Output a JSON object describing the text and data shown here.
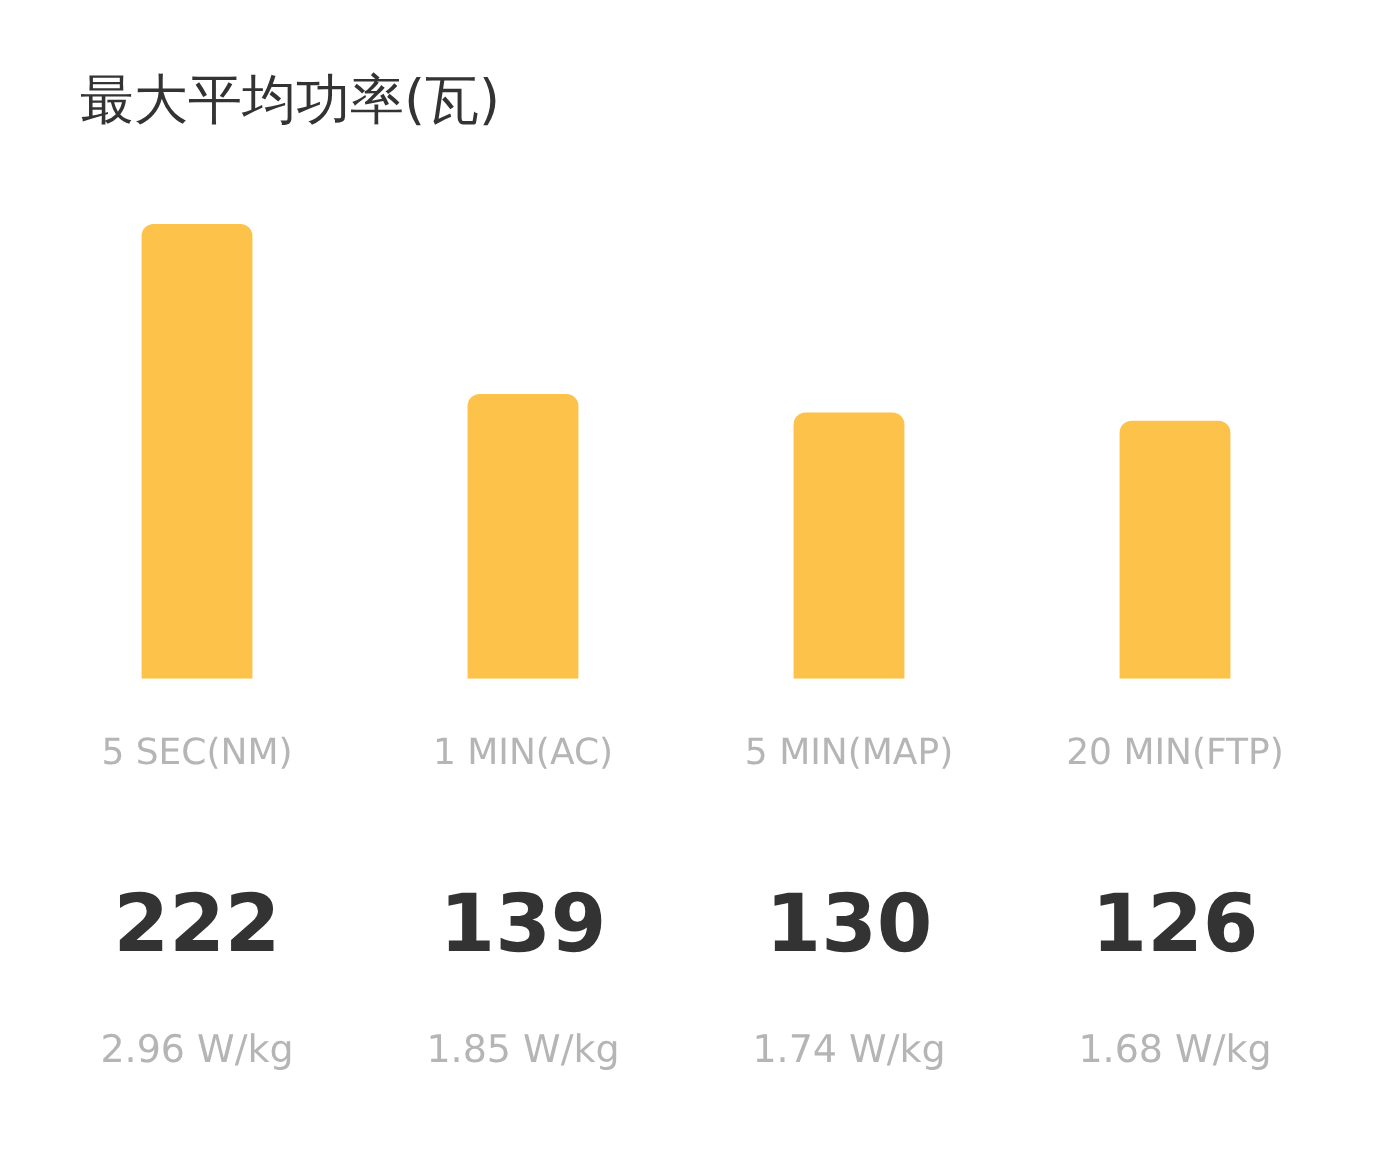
{
  "chart_data": {
    "type": "bar",
    "title": "最大平均功率(瓦)",
    "categories": [
      "5 SEC(NM)",
      "1 MIN(AC)",
      "5 MIN(MAP)",
      "20 MIN(FTP)"
    ],
    "values": [
      222,
      139,
      130,
      126
    ],
    "color": "#fdc24a",
    "data_labels": true,
    "tick_labels": "x",
    "annotations": [
      "2.96 W/kg",
      "1.85 W/kg",
      "1.74 W/kg",
      "1.68 W/kg"
    ],
    "grid": false,
    "legend": false
  }
}
